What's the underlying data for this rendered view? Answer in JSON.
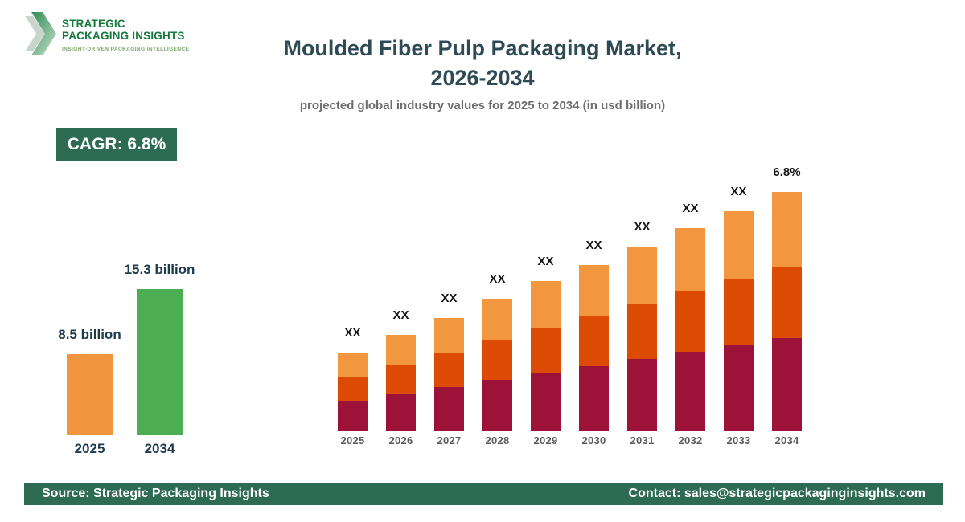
{
  "page": {
    "background": "#FFFFFF"
  },
  "brand": {
    "name_line1": "STRATEGIC",
    "name_line2": "PACKAGING INSIGHTS",
    "tagline": "INSIGHT-DRIVEN PACKAGING INTELLIGENCE",
    "logo_colors": {
      "chevron_dark": "#2F8C55",
      "chevron_fade": "#C3DCC9",
      "chevron_back": "#C9D5CC",
      "name_text": "#15793E",
      "tagline_text": "#7CA96B"
    }
  },
  "header": {
    "title_line1": "Moulded Fiber Pulp Packaging Market,",
    "title_line2": "2026-2034",
    "subtitle": "projected global industry values for 2025 to 2034 (in usd billion)",
    "title_color": "#2D4A55",
    "subtitle_color": "#6E6E6E"
  },
  "cagr_badge": {
    "label": "CAGR: 6.8%",
    "background": "#2D6B53",
    "text_color": "#FFFFFF"
  },
  "footer": {
    "source": "Source: Strategic Packaging Insights",
    "contact": "Contact: sales@strategicpackaginginsights.com",
    "background": "#2D6B53",
    "text_color": "#FFFFFF"
  },
  "chart_data": [
    {
      "type": "bar",
      "name": "market-size-summary",
      "title": "",
      "categories": [
        "2025",
        "2034"
      ],
      "values": [
        8.5,
        15.3
      ],
      "value_labels": [
        "8.5 billion",
        "15.3 billion"
      ],
      "bar_colors": [
        "#F0963F",
        "#4CAD52"
      ],
      "xlabel": "",
      "ylabel": "",
      "ylim": [
        0,
        17
      ],
      "grid": false,
      "legend": "none",
      "label_color": "#1C3A50"
    },
    {
      "type": "bar",
      "subtype": "stacked",
      "name": "market-forecast-by-year",
      "title": "",
      "categories": [
        "2025",
        "2026",
        "2027",
        "2028",
        "2029",
        "2030",
        "2031",
        "2032",
        "2033",
        "2034"
      ],
      "series": [
        {
          "name": "bottom-segment",
          "color": "#9D1239",
          "values": [
            38,
            47,
            55,
            64,
            73,
            81,
            90,
            99,
            107,
            116
          ]
        },
        {
          "name": "middle-segment",
          "color": "#DC4A04",
          "values": [
            29,
            36,
            42,
            50,
            56,
            62,
            69,
            76,
            82,
            89
          ]
        },
        {
          "name": "top-segment",
          "color": "#F2963F",
          "values": [
            31,
            37,
            44,
            51,
            58,
            64,
            71,
            78,
            85,
            93
          ]
        }
      ],
      "bar_labels": [
        "XX",
        "XX",
        "XX",
        "XX",
        "XX",
        "XX",
        "XX",
        "XX",
        "XX",
        "6.8%"
      ],
      "units": "relative height units (numeric values masked as XX in source image)",
      "xlabel": "",
      "ylabel": "",
      "ylim": [
        0,
        300
      ],
      "grid": false,
      "legend": "none",
      "tick_color": "#5A5A5A",
      "bar_label_color": "#141414"
    }
  ]
}
